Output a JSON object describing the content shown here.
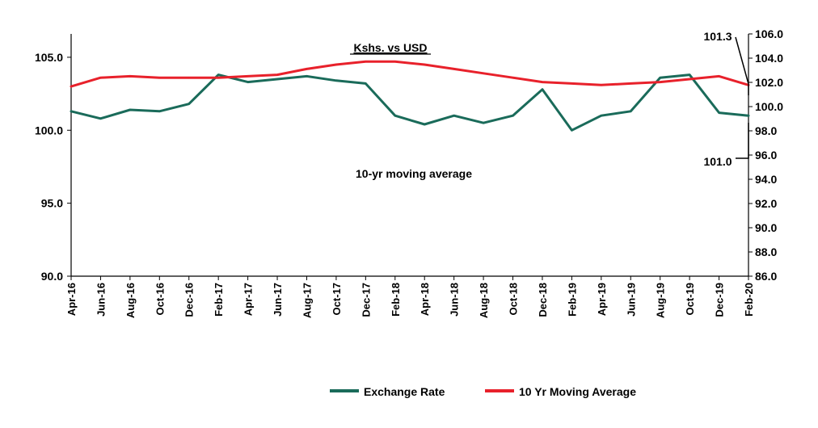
{
  "chart_data": {
    "type": "line",
    "title": "Kshs. vs USD",
    "x": [
      "Apr-16",
      "Jun-16",
      "Aug-16",
      "Oct-16",
      "Dec-16",
      "Feb-17",
      "Apr-17",
      "Jun-17",
      "Aug-17",
      "Oct-17",
      "Dec-17",
      "Feb-18",
      "Apr-18",
      "Jun-18",
      "Aug-18",
      "Oct-18",
      "Dec-18",
      "Feb-19",
      "Apr-19",
      "Jun-19",
      "Aug-19",
      "Oct-19",
      "Dec-19",
      "Feb-20"
    ],
    "y_left": {
      "min": 90.0,
      "max": 106.6,
      "ticks": [
        "90.0",
        "95.0",
        "100.0",
        "105.0"
      ]
    },
    "y_right": {
      "min": 86.0,
      "max": 106.0,
      "ticks": [
        "86.0",
        "88.0",
        "90.0",
        "92.0",
        "94.0",
        "96.0",
        "98.0",
        "100.0",
        "102.0",
        "104.0",
        "106.0"
      ]
    },
    "series": [
      {
        "name": "Exchange Rate",
        "axis": "left",
        "color": "#1a6b5a",
        "values": [
          101.3,
          100.8,
          101.4,
          101.3,
          101.8,
          103.8,
          103.3,
          103.5,
          103.7,
          103.4,
          103.2,
          101.0,
          100.4,
          101.0,
          100.5,
          101.0,
          102.8,
          100.0,
          101.0,
          101.3,
          103.6,
          103.8,
          101.2,
          101.0
        ]
      },
      {
        "name": "10 Yr Moving Average",
        "axis": "left",
        "color": "#e8212b",
        "values": [
          103.0,
          103.6,
          103.7,
          103.6,
          103.6,
          103.6,
          103.7,
          103.8,
          104.2,
          104.5,
          104.7,
          104.7,
          104.5,
          104.2,
          103.9,
          103.6,
          103.3,
          103.2,
          103.1,
          103.2,
          103.3,
          103.5,
          103.7,
          103.1
        ]
      }
    ],
    "annotations": {
      "top_right_value": "101.3",
      "bottom_right_value": "101.0",
      "mid_label": "10-yr moving average"
    },
    "legend_position": "bottom",
    "grid": false
  }
}
